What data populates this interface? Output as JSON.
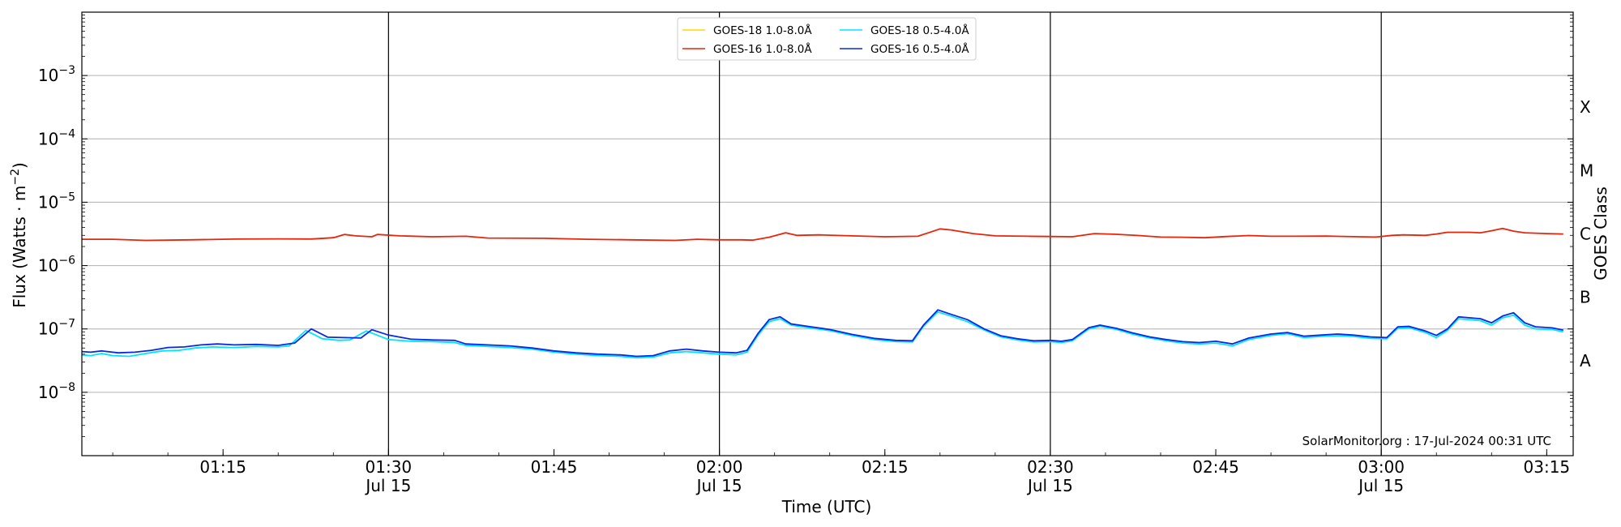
{
  "chart_data": {
    "type": "line",
    "ylabel_main": "Flux (Watts · m",
    "ylabel_exp": "−2",
    "ylabel_close": ")",
    "xlabel": "Time (UTC)",
    "right_label": "GOES Class",
    "credit": "SolarMonitor.org : 17-Jul-2024 00:31 UTC",
    "y_scale": "log",
    "ylim": [
      -9,
      -2
    ],
    "xlim": [
      62.2,
      197.4
    ],
    "grid": "horizontal",
    "legend_position": "top-center",
    "y_ticks": [
      {
        "exp": -8,
        "base": "10",
        "sup": "−8"
      },
      {
        "exp": -7,
        "base": "10",
        "sup": "−7"
      },
      {
        "exp": -6,
        "base": "10",
        "sup": "−6"
      },
      {
        "exp": -5,
        "base": "10",
        "sup": "−5"
      },
      {
        "exp": -4,
        "base": "10",
        "sup": "−4"
      },
      {
        "exp": -3,
        "base": "10",
        "sup": "−3"
      }
    ],
    "x_ticks": [
      {
        "t": 75,
        "label": "01:15",
        "sub": ""
      },
      {
        "t": 90,
        "label": "01:30",
        "sub": "Jul 15"
      },
      {
        "t": 105,
        "label": "01:45",
        "sub": ""
      },
      {
        "t": 120,
        "label": "02:00",
        "sub": "Jul 15"
      },
      {
        "t": 135,
        "label": "02:15",
        "sub": ""
      },
      {
        "t": 150,
        "label": "02:30",
        "sub": "Jul 15"
      },
      {
        "t": 165,
        "label": "02:45",
        "sub": ""
      },
      {
        "t": 180,
        "label": "03:00",
        "sub": "Jul 15"
      },
      {
        "t": 195,
        "label": "03:15",
        "sub": ""
      }
    ],
    "vlines": [
      90,
      120,
      150,
      180
    ],
    "classes": [
      {
        "label": "A",
        "exp": -7.5
      },
      {
        "label": "B",
        "exp": -6.5
      },
      {
        "label": "C",
        "exp": -5.5
      },
      {
        "label": "M",
        "exp": -4.5
      },
      {
        "label": "X",
        "exp": -3.5
      }
    ],
    "series": [
      {
        "name": "GOES-18 1.0-8.0Å",
        "color": "#ffd700",
        "values": []
      },
      {
        "name": "GOES-16 1.0-8.0Å",
        "color": "#e8250a",
        "values": [
          [
            62.2,
            2.6e-06
          ],
          [
            63.5,
            2.6e-06
          ],
          [
            65,
            2.6e-06
          ],
          [
            68,
            2.5e-06
          ],
          [
            72,
            2.55e-06
          ],
          [
            76,
            2.62e-06
          ],
          [
            80,
            2.64e-06
          ],
          [
            83,
            2.63e-06
          ],
          [
            85,
            2.75e-06
          ],
          [
            83.5,
            2.65e-06
          ],
          [
            85,
            2.75e-06
          ],
          [
            86,
            3.1e-06
          ],
          [
            87,
            2.95e-06
          ],
          [
            88.5,
            2.85e-06
          ],
          [
            89,
            3.1e-06
          ],
          [
            91,
            2.95e-06
          ],
          [
            94,
            2.85e-06
          ],
          [
            97,
            2.9e-06
          ],
          [
            99,
            2.72e-06
          ],
          [
            104,
            2.7e-06
          ],
          [
            108,
            2.6e-06
          ],
          [
            112,
            2.55e-06
          ],
          [
            116,
            2.5e-06
          ],
          [
            118,
            2.6e-06
          ],
          [
            120,
            2.55e-06
          ],
          [
            122,
            2.55e-06
          ],
          [
            123,
            2.52e-06
          ],
          [
            124.5,
            2.8e-06
          ],
          [
            126,
            3.3e-06
          ],
          [
            127,
            3e-06
          ],
          [
            129,
            3.05e-06
          ],
          [
            132,
            2.95e-06
          ],
          [
            135,
            2.85e-06
          ],
          [
            138,
            2.9e-06
          ],
          [
            140,
            3.8e-06
          ],
          [
            141,
            3.65e-06
          ],
          [
            143,
            3.2e-06
          ],
          [
            145,
            2.95e-06
          ],
          [
            148,
            2.9e-06
          ],
          [
            150,
            2.88e-06
          ],
          [
            152,
            2.85e-06
          ],
          [
            154,
            3.2e-06
          ],
          [
            156,
            3.12e-06
          ],
          [
            158,
            2.98e-06
          ],
          [
            160,
            2.82e-06
          ],
          [
            162,
            2.8e-06
          ],
          [
            164,
            2.75e-06
          ],
          [
            166,
            2.88e-06
          ],
          [
            168,
            2.98e-06
          ],
          [
            170,
            2.9e-06
          ],
          [
            172,
            2.9e-06
          ],
          [
            175,
            2.92e-06
          ],
          [
            178,
            2.85e-06
          ],
          [
            179.5,
            2.82e-06
          ],
          [
            181,
            3e-06
          ],
          [
            182,
            3.05e-06
          ],
          [
            184,
            3e-06
          ],
          [
            185,
            3.15e-06
          ],
          [
            186,
            3.35e-06
          ],
          [
            188,
            3.35e-06
          ],
          [
            189,
            3.3e-06
          ],
          [
            190,
            3.55e-06
          ],
          [
            191,
            3.85e-06
          ],
          [
            192,
            3.5e-06
          ],
          [
            193,
            3.3e-06
          ],
          [
            195,
            3.2e-06
          ],
          [
            196.5,
            3.15e-06
          ]
        ]
      },
      {
        "name": "GOES-18 0.5-4.0Å",
        "color": "#00e5ff",
        "values": [
          [
            62.2,
            3.9e-08
          ],
          [
            63,
            3.8e-08
          ],
          [
            64,
            4.1e-08
          ],
          [
            65,
            3.8e-08
          ],
          [
            66.5,
            3.7e-08
          ],
          [
            68,
            4.1e-08
          ],
          [
            69.5,
            4.5e-08
          ],
          [
            71,
            4.6e-08
          ],
          [
            72.5,
            5e-08
          ],
          [
            74,
            5.2e-08
          ],
          [
            76,
            5.1e-08
          ],
          [
            78,
            5.3e-08
          ],
          [
            80,
            5.2e-08
          ],
          [
            81,
            5.4e-08
          ],
          [
            82.5,
            9.5e-08
          ],
          [
            84,
            7e-08
          ],
          [
            85.5,
            6.6e-08
          ],
          [
            86.5,
            6.7e-08
          ],
          [
            88,
            9.3e-08
          ],
          [
            90,
            6.8e-08
          ],
          [
            92,
            6.4e-08
          ],
          [
            94,
            6.3e-08
          ],
          [
            96,
            6.1e-08
          ],
          [
            97,
            5.5e-08
          ],
          [
            99,
            5.3e-08
          ],
          [
            101,
            5.1e-08
          ],
          [
            103,
            4.8e-08
          ],
          [
            105,
            4.3e-08
          ],
          [
            107,
            4e-08
          ],
          [
            109,
            3.8e-08
          ],
          [
            111,
            3.7e-08
          ],
          [
            112.5,
            3.5e-08
          ],
          [
            114,
            3.6e-08
          ],
          [
            115.5,
            4.2e-08
          ],
          [
            117,
            4.4e-08
          ],
          [
            118.5,
            4.2e-08
          ],
          [
            120,
            4e-08
          ],
          [
            121.5,
            3.9e-08
          ],
          [
            122.5,
            4.3e-08
          ],
          [
            123.5,
            8e-08
          ],
          [
            124.5,
            1.3e-07
          ],
          [
            125.5,
            1.45e-07
          ],
          [
            126.5,
            1.15e-07
          ],
          [
            128,
            1.05e-07
          ],
          [
            130,
            9.4e-08
          ],
          [
            132,
            7.9e-08
          ],
          [
            134,
            6.8e-08
          ],
          [
            136,
            6.3e-08
          ],
          [
            137.5,
            6.2e-08
          ],
          [
            138.5,
            1.1e-07
          ],
          [
            139.8,
            1.85e-07
          ],
          [
            141,
            1.6e-07
          ],
          [
            142.5,
            1.3e-07
          ],
          [
            144,
            9.6e-08
          ],
          [
            145.5,
            7.5e-08
          ],
          [
            147,
            6.7e-08
          ],
          [
            148.5,
            6.2e-08
          ],
          [
            150,
            6.3e-08
          ],
          [
            151,
            6.1e-08
          ],
          [
            152,
            6.5e-08
          ],
          [
            153.5,
            1e-07
          ],
          [
            154.5,
            1.1e-07
          ],
          [
            156,
            9.8e-08
          ],
          [
            157.5,
            8.2e-08
          ],
          [
            159,
            7.2e-08
          ],
          [
            160.5,
            6.5e-08
          ],
          [
            162,
            6e-08
          ],
          [
            163.5,
            5.8e-08
          ],
          [
            165,
            6e-08
          ],
          [
            166.5,
            5.4e-08
          ],
          [
            168,
            6.8e-08
          ],
          [
            170,
            7.9e-08
          ],
          [
            171.5,
            8.4e-08
          ],
          [
            173,
            7.3e-08
          ],
          [
            174.5,
            7.6e-08
          ],
          [
            176,
            7.8e-08
          ],
          [
            177.5,
            7.6e-08
          ],
          [
            179,
            7.1e-08
          ],
          [
            180.5,
            7e-08
          ],
          [
            181.5,
            1.02e-07
          ],
          [
            182.5,
            1.05e-07
          ],
          [
            184,
            8.8e-08
          ],
          [
            185,
            7.3e-08
          ],
          [
            186,
            9.5e-08
          ],
          [
            187,
            1.45e-07
          ],
          [
            189,
            1.35e-07
          ],
          [
            190,
            1.15e-07
          ],
          [
            191,
            1.5e-07
          ],
          [
            192,
            1.65e-07
          ],
          [
            193,
            1.15e-07
          ],
          [
            194,
            1e-07
          ],
          [
            195.5,
            9.8e-08
          ],
          [
            196.5,
            9e-08
          ]
        ]
      },
      {
        "name": "GOES-16 0.5-4.0Å",
        "color": "#0a28e6",
        "values": [
          [
            62.2,
            4.4e-08
          ],
          [
            63,
            4.3e-08
          ],
          [
            64,
            4.5e-08
          ],
          [
            65.5,
            4.2e-08
          ],
          [
            67,
            4.3e-08
          ],
          [
            68.5,
            4.6e-08
          ],
          [
            70,
            5.1e-08
          ],
          [
            71.5,
            5.2e-08
          ],
          [
            73,
            5.6e-08
          ],
          [
            74.5,
            5.8e-08
          ],
          [
            76,
            5.6e-08
          ],
          [
            78,
            5.7e-08
          ],
          [
            80,
            5.5e-08
          ],
          [
            81.5,
            6e-08
          ],
          [
            83,
            1e-07
          ],
          [
            84.5,
            7.4e-08
          ],
          [
            86,
            7.3e-08
          ],
          [
            87.5,
            7.2e-08
          ],
          [
            88.5,
            9.7e-08
          ],
          [
            90,
            8e-08
          ],
          [
            92,
            6.9e-08
          ],
          [
            94,
            6.7e-08
          ],
          [
            96,
            6.6e-08
          ],
          [
            97,
            5.8e-08
          ],
          [
            99,
            5.6e-08
          ],
          [
            101,
            5.4e-08
          ],
          [
            103,
            5e-08
          ],
          [
            105,
            4.5e-08
          ],
          [
            107,
            4.2e-08
          ],
          [
            109,
            4e-08
          ],
          [
            111,
            3.9e-08
          ],
          [
            112.5,
            3.7e-08
          ],
          [
            114,
            3.8e-08
          ],
          [
            115.5,
            4.5e-08
          ],
          [
            117,
            4.8e-08
          ],
          [
            118.5,
            4.5e-08
          ],
          [
            120,
            4.3e-08
          ],
          [
            121.5,
            4.2e-08
          ],
          [
            122.5,
            4.6e-08
          ],
          [
            123.5,
            8.5e-08
          ],
          [
            124.5,
            1.4e-07
          ],
          [
            125.5,
            1.55e-07
          ],
          [
            126.5,
            1.2e-07
          ],
          [
            128,
            1.1e-07
          ],
          [
            130,
            9.8e-08
          ],
          [
            132,
            8.2e-08
          ],
          [
            134,
            7.1e-08
          ],
          [
            136,
            6.6e-08
          ],
          [
            137.5,
            6.5e-08
          ],
          [
            138.5,
            1.15e-07
          ],
          [
            139.8,
            2e-07
          ],
          [
            141,
            1.7e-07
          ],
          [
            142.5,
            1.4e-07
          ],
          [
            144,
            1e-07
          ],
          [
            145.5,
            7.8e-08
          ],
          [
            147,
            7e-08
          ],
          [
            148.5,
            6.5e-08
          ],
          [
            150,
            6.6e-08
          ],
          [
            151,
            6.4e-08
          ],
          [
            152,
            6.8e-08
          ],
          [
            153.5,
            1.05e-07
          ],
          [
            154.5,
            1.15e-07
          ],
          [
            156,
            1.02e-07
          ],
          [
            157.5,
            8.6e-08
          ],
          [
            159,
            7.5e-08
          ],
          [
            160.5,
            6.8e-08
          ],
          [
            162,
            6.3e-08
          ],
          [
            163.5,
            6.1e-08
          ],
          [
            165,
            6.4e-08
          ],
          [
            166.5,
            5.8e-08
          ],
          [
            168,
            7.2e-08
          ],
          [
            170,
            8.3e-08
          ],
          [
            171.5,
            8.8e-08
          ],
          [
            173,
            7.7e-08
          ],
          [
            174.5,
            8e-08
          ],
          [
            176,
            8.3e-08
          ],
          [
            177.5,
            8e-08
          ],
          [
            179,
            7.5e-08
          ],
          [
            180.5,
            7.3e-08
          ],
          [
            181.5,
            1.08e-07
          ],
          [
            182.5,
            1.1e-07
          ],
          [
            184,
            9.3e-08
          ],
          [
            185,
            7.9e-08
          ],
          [
            186,
            1e-07
          ],
          [
            187,
            1.55e-07
          ],
          [
            189,
            1.45e-07
          ],
          [
            190,
            1.25e-07
          ],
          [
            191,
            1.6e-07
          ],
          [
            192,
            1.8e-07
          ],
          [
            193,
            1.25e-07
          ],
          [
            194,
            1.08e-07
          ],
          [
            195.5,
            1.04e-07
          ],
          [
            196.5,
            9.6e-08
          ]
        ]
      }
    ]
  }
}
